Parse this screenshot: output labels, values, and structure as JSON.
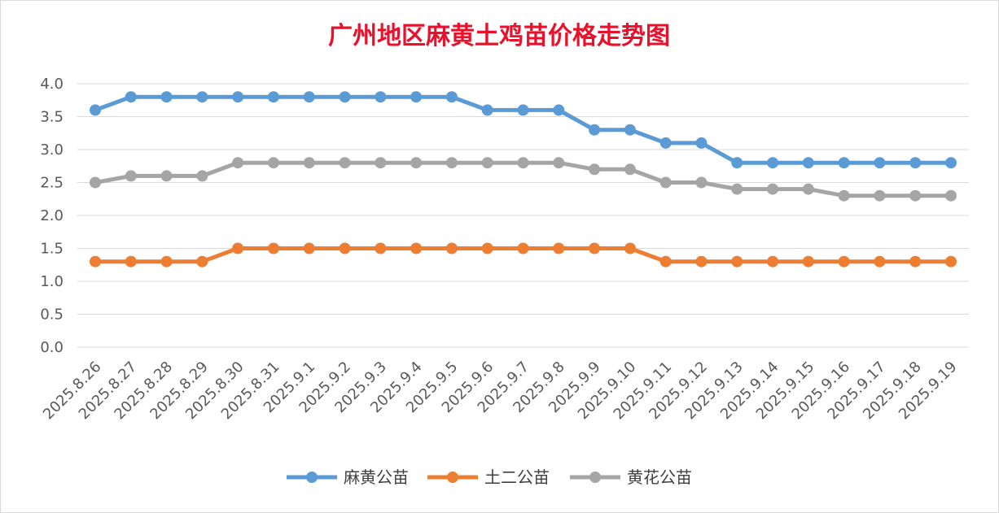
{
  "chart_data": {
    "type": "line",
    "title": "广州地区麻黄土鸡苗价格走势图",
    "xlabel": "",
    "ylabel": "",
    "ylim": [
      0,
      4.0
    ],
    "ytick_step": 0.5,
    "y_tick_labels": [
      "0.0",
      "0.5",
      "1.0",
      "1.5",
      "2.0",
      "2.5",
      "3.0",
      "3.5",
      "4.0"
    ],
    "grid": true,
    "legend_position": "bottom",
    "categories": [
      "2025.8.26",
      "2025.8.27",
      "2025.8.28",
      "2025.8.29",
      "2025.8.30",
      "2025.8.31",
      "2025.9.1",
      "2025.9.2",
      "2025.9.3",
      "2025.9.4",
      "2025.9.5",
      "2025.9.6",
      "2025.9.7",
      "2025.9.8",
      "2025.9.9",
      "2025.9.10",
      "2025.9.11",
      "2025.9.12",
      "2025.9.13",
      "2025.9.14",
      "2025.9.15",
      "2025.9.16",
      "2025.9.17",
      "2025.9.18",
      "2025.9.19"
    ],
    "series": [
      {
        "name": "麻黄公苗",
        "color": "#5b9bd5",
        "values": [
          3.6,
          3.8,
          3.8,
          3.8,
          3.8,
          3.8,
          3.8,
          3.8,
          3.8,
          3.8,
          3.8,
          3.6,
          3.6,
          3.6,
          3.3,
          3.3,
          3.1,
          3.1,
          2.8,
          2.8,
          2.8,
          2.8,
          2.8,
          2.8,
          2.8
        ]
      },
      {
        "name": "土二公苗",
        "color": "#ed7d31",
        "values": [
          1.3,
          1.3,
          1.3,
          1.3,
          1.5,
          1.5,
          1.5,
          1.5,
          1.5,
          1.5,
          1.5,
          1.5,
          1.5,
          1.5,
          1.5,
          1.5,
          1.3,
          1.3,
          1.3,
          1.3,
          1.3,
          1.3,
          1.3,
          1.3,
          1.3
        ]
      },
      {
        "name": "黄花公苗",
        "color": "#a5a5a5",
        "values": [
          2.5,
          2.6,
          2.6,
          2.6,
          2.8,
          2.8,
          2.8,
          2.8,
          2.8,
          2.8,
          2.8,
          2.8,
          2.8,
          2.8,
          2.7,
          2.7,
          2.5,
          2.5,
          2.4,
          2.4,
          2.4,
          2.3,
          2.3,
          2.3,
          2.3
        ]
      }
    ]
  }
}
